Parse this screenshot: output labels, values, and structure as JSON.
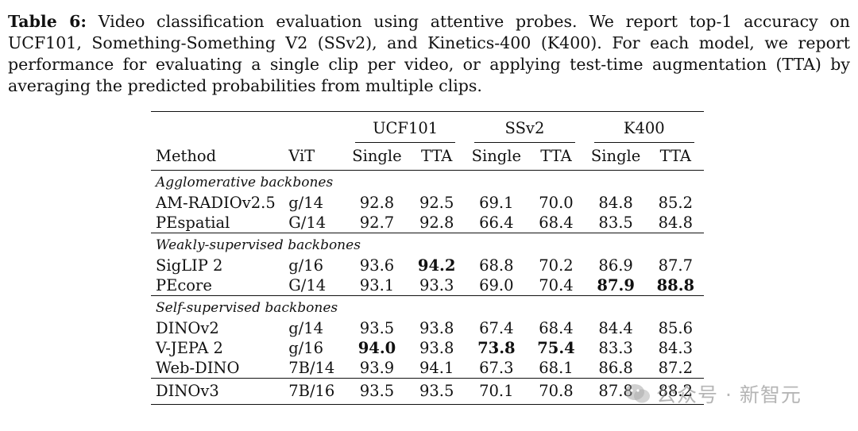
{
  "caption": {
    "label": "Table 6:",
    "text": "Video classification evaluation using attentive probes. We report top-1 accuracy on UCF101, Something-Something V2 (SSv2), and Kinetics-400 (K400). For each model, we report performance for evaluating a single clip per video, or applying test-time augmentation (TTA) by averaging the predicted probabilities from multiple clips."
  },
  "header": {
    "groups": [
      "UCF101",
      "SSv2",
      "K400"
    ],
    "method": "Method",
    "vit": "ViT",
    "sub": [
      "Single",
      "TTA",
      "Single",
      "TTA",
      "Single",
      "TTA"
    ]
  },
  "sections": [
    {
      "title": "Agglomerative backbones",
      "rows": [
        {
          "method": "AM-RADIOv2.5",
          "vit": "g/14",
          "vals": [
            "92.8",
            "92.5",
            "69.1",
            "70.0",
            "84.8",
            "85.2"
          ]
        },
        {
          "method": "PEspatial",
          "vit": "G/14",
          "vals": [
            "92.7",
            "92.8",
            "66.4",
            "68.4",
            "83.5",
            "84.8"
          ]
        }
      ]
    },
    {
      "title": "Weakly-supervised backbones",
      "rows": [
        {
          "method": "SigLIP 2",
          "vit": "g/16",
          "vals": [
            "93.6",
            "94.2",
            "68.8",
            "70.2",
            "86.9",
            "87.7"
          ]
        },
        {
          "method": "PEcore",
          "vit": "G/14",
          "vals": [
            "93.1",
            "93.3",
            "69.0",
            "70.4",
            "87.9",
            "88.8"
          ]
        }
      ]
    },
    {
      "title": "Self-supervised backbones",
      "rows": [
        {
          "method": "DINOv2",
          "vit": "g/14",
          "vals": [
            "93.5",
            "93.8",
            "67.4",
            "68.4",
            "84.4",
            "85.6"
          ]
        },
        {
          "method": "V-JEPA 2",
          "vit": "g/16",
          "vals": [
            "94.0",
            "93.8",
            "73.8",
            "75.4",
            "83.3",
            "84.3"
          ]
        },
        {
          "method": "Web-DINO",
          "vit": "7B/14",
          "vals": [
            "93.9",
            "94.1",
            "67.3",
            "68.1",
            "86.8",
            "87.2"
          ]
        }
      ]
    }
  ],
  "final_row": {
    "method": "DINOv3",
    "vit": "7B/16",
    "vals": [
      "93.5",
      "93.5",
      "70.1",
      "70.8",
      "87.8",
      "88.2"
    ]
  },
  "watermark": "公众号 · 新智元"
}
